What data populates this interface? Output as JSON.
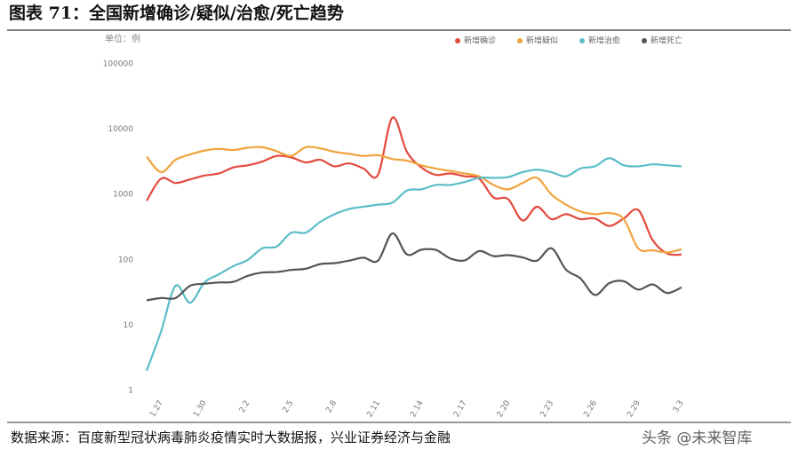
{
  "header": {
    "title": "图表 71：全国新增确诊/疑似/治愈/死亡趋势"
  },
  "chart_data": {
    "type": "line",
    "yscale": "log",
    "unit_label": "单位：例",
    "legend": "top-right",
    "grid": false,
    "categories": [
      null,
      "1.27",
      null,
      null,
      "1.30",
      null,
      null,
      "2.2",
      null,
      null,
      "2.5",
      null,
      null,
      "2.8",
      null,
      null,
      "2.11",
      null,
      null,
      "2.14",
      null,
      null,
      "2.17",
      null,
      null,
      "2.20",
      null,
      null,
      "2.23",
      null,
      null,
      "2.26",
      null,
      null,
      "2.29",
      null,
      null,
      "3.3"
    ],
    "ylim": [
      1,
      100000
    ],
    "yticks": [
      1,
      10,
      100,
      1000,
      10000,
      100000
    ],
    "series": [
      {
        "name": "新增确诊",
        "color": "#e34a3d",
        "values": [
          800,
          1750,
          1500,
          1700,
          1950,
          2100,
          2600,
          2800,
          3200,
          3900,
          3700,
          3100,
          3400,
          2700,
          3000,
          2500,
          2000,
          15000,
          4500,
          2600,
          2000,
          2100,
          1900,
          1750,
          900,
          850,
          400,
          650,
          420,
          500,
          420,
          430,
          330,
          430,
          580,
          200,
          125,
          120
        ]
      },
      {
        "name": "新增疑似",
        "color": "#f0a33b",
        "values": [
          3800,
          2200,
          3400,
          4100,
          4700,
          5000,
          4800,
          5200,
          5300,
          4600,
          3900,
          5300,
          5100,
          4500,
          4200,
          3900,
          4000,
          3500,
          3300,
          2800,
          2500,
          2300,
          2100,
          1900,
          1400,
          1200,
          1500,
          1800,
          1000,
          700,
          550,
          500,
          520,
          420,
          150,
          140,
          130,
          145
        ]
      },
      {
        "name": "新增治愈",
        "color": "#5bbdc8",
        "values": [
          2,
          8,
          40,
          22,
          45,
          60,
          80,
          100,
          150,
          160,
          260,
          260,
          380,
          500,
          600,
          650,
          700,
          750,
          1150,
          1200,
          1400,
          1400,
          1550,
          1800,
          1800,
          1850,
          2200,
          2400,
          2200,
          1900,
          2500,
          2700,
          3600,
          2800,
          2700,
          2900,
          2800,
          2700
        ]
      },
      {
        "name": "新增死亡",
        "color": "#555555",
        "values": [
          24,
          26,
          26,
          40,
          43,
          45,
          46,
          57,
          64,
          65,
          70,
          73,
          86,
          89,
          97,
          108,
          97,
          254,
          121,
          143,
          142,
          105,
          98,
          136,
          114,
          118,
          109,
          97,
          150,
          71,
          52,
          29,
          44,
          47,
          35,
          42,
          31,
          38
        ]
      }
    ]
  },
  "footer": {
    "source": "数据来源：百度新型冠状病毒肺炎疫情实时大数据报，兴业证券经济与金融",
    "watermark": "头条 @未来智库"
  }
}
